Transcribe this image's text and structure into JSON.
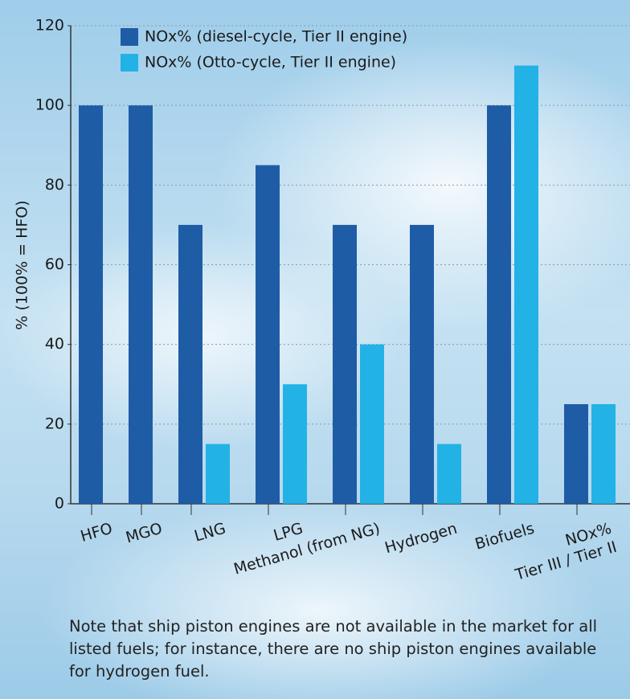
{
  "chart_data": {
    "type": "bar",
    "y_label": "% (100% = HFO)",
    "categories": [
      "HFO",
      "MGO",
      "LNG",
      "LPG",
      "Methanol (from NG)",
      "Hydrogen",
      "Biofuels",
      "NOx%\nTier III / Tier II"
    ],
    "series": [
      {
        "name": "NOx% (diesel-cycle, Tier II engine)",
        "color": "#1f5ca6",
        "values": [
          100,
          100,
          70,
          85,
          70,
          70,
          100,
          25
        ]
      },
      {
        "name": "NOx% (Otto-cycle, Tier II engine)",
        "color": "#22b2e6",
        "values": [
          null,
          null,
          15,
          30,
          40,
          15,
          110,
          25
        ]
      }
    ],
    "ylim": [
      0,
      120
    ],
    "yticks": [
      0,
      20,
      40,
      60,
      80,
      100,
      120
    ],
    "grid": true,
    "note": "Note that ship piston engines are not available in the market for all listed fuels; for instance, there are no ship piston engines available for hydrogen fuel."
  }
}
